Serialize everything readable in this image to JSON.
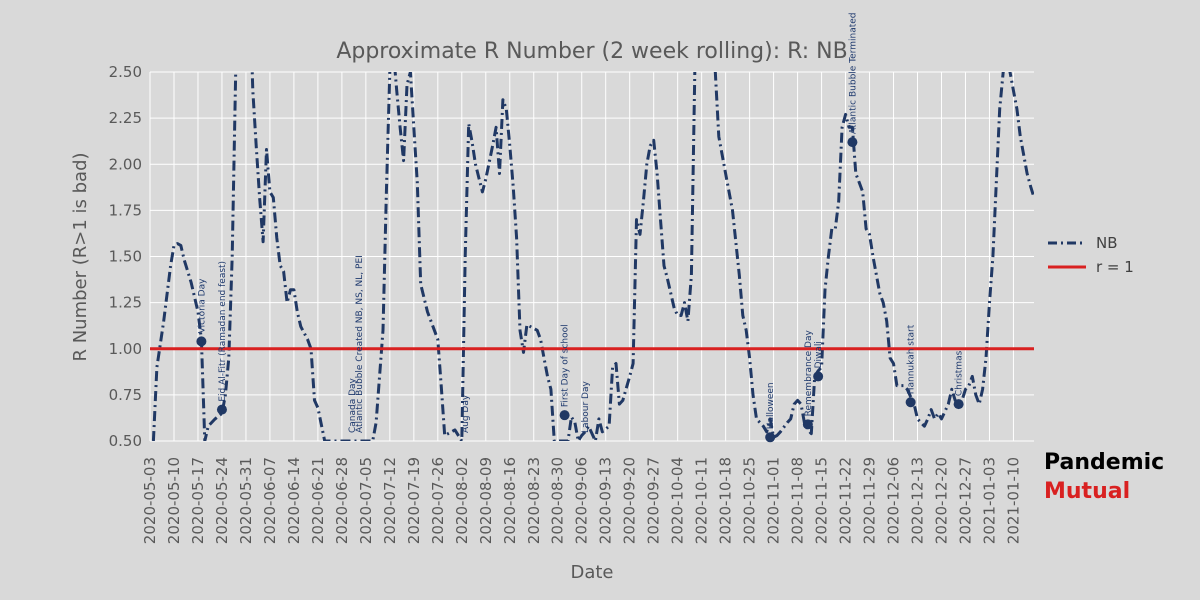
{
  "chart_data": {
    "type": "line",
    "title": "Approximate R Number (2 week rolling): R: NB",
    "xlabel": "Date",
    "ylabel": "R Number (R>1 is bad)",
    "ylim": [
      0.5,
      2.5
    ],
    "xlim": [
      "2020-05-03",
      "2021-01-16"
    ],
    "yticks": [
      "0.50",
      "0.75",
      "1.00",
      "1.25",
      "1.50",
      "1.75",
      "2.00",
      "2.25",
      "2.50"
    ],
    "xticks": [
      "2020-05-03",
      "2020-05-10",
      "2020-05-17",
      "2020-05-24",
      "2020-05-31",
      "2020-06-07",
      "2020-06-14",
      "2020-06-21",
      "2020-06-28",
      "2020-07-05",
      "2020-07-12",
      "2020-07-19",
      "2020-07-26",
      "2020-08-02",
      "2020-08-09",
      "2020-08-16",
      "2020-08-23",
      "2020-08-30",
      "2020-09-06",
      "2020-09-13",
      "2020-09-20",
      "2020-09-27",
      "2020-10-04",
      "2020-10-11",
      "2020-10-18",
      "2020-10-25",
      "2020-11-01",
      "2020-11-08",
      "2020-11-15",
      "2020-11-22",
      "2020-11-29",
      "2020-12-06",
      "2020-12-13",
      "2020-12-20",
      "2020-12-27",
      "2021-01-03",
      "2021-01-10"
    ],
    "grid": true,
    "legend_position": "right",
    "series": [
      {
        "name": "NB",
        "color": "#203864",
        "style": "dash-dot",
        "points": [
          [
            "2020-05-04",
            0.5
          ],
          [
            "2020-05-05",
            0.9
          ],
          [
            "2020-05-07",
            1.15
          ],
          [
            "2020-05-09",
            1.45
          ],
          [
            "2020-05-10",
            1.56
          ],
          [
            "2020-05-11",
            1.57
          ],
          [
            "2020-05-12",
            1.56
          ],
          [
            "2020-05-13",
            1.48
          ],
          [
            "2020-05-15",
            1.36
          ],
          [
            "2020-05-17",
            1.2
          ],
          [
            "2020-05-18",
            1.05
          ],
          [
            "2020-05-19",
            0.5
          ],
          [
            "2020-05-20",
            0.58
          ],
          [
            "2020-05-22",
            0.62
          ],
          [
            "2020-05-24",
            0.65
          ],
          [
            "2020-05-25",
            0.75
          ],
          [
            "2020-05-26",
            0.95
          ],
          [
            "2020-05-27",
            1.5
          ],
          [
            "2020-05-28",
            2.5
          ],
          [
            "2020-05-29",
            3.0
          ],
          [
            "2020-06-01",
            3.0
          ],
          [
            "2020-06-02",
            2.4
          ],
          [
            "2020-06-03",
            2.1
          ],
          [
            "2020-06-04",
            1.82
          ],
          [
            "2020-06-05",
            1.58
          ],
          [
            "2020-06-06",
            2.08
          ],
          [
            "2020-06-07",
            1.85
          ],
          [
            "2020-06-08",
            1.82
          ],
          [
            "2020-06-09",
            1.6
          ],
          [
            "2020-06-10",
            1.45
          ],
          [
            "2020-06-11",
            1.42
          ],
          [
            "2020-06-12",
            1.25
          ],
          [
            "2020-06-13",
            1.32
          ],
          [
            "2020-06-14",
            1.32
          ],
          [
            "2020-06-15",
            1.2
          ],
          [
            "2020-06-16",
            1.12
          ],
          [
            "2020-06-18",
            1.05
          ],
          [
            "2020-06-19",
            1.0
          ],
          [
            "2020-06-20",
            0.72
          ],
          [
            "2020-06-21",
            0.68
          ],
          [
            "2020-06-23",
            0.5
          ],
          [
            "2020-07-07",
            0.5
          ],
          [
            "2020-07-08",
            0.6
          ],
          [
            "2020-07-10",
            1.1
          ],
          [
            "2020-07-11",
            1.85
          ],
          [
            "2020-07-12",
            2.5
          ],
          [
            "2020-07-13",
            2.62
          ],
          [
            "2020-07-14",
            2.4
          ],
          [
            "2020-07-15",
            2.2
          ],
          [
            "2020-07-16",
            2.02
          ],
          [
            "2020-07-17",
            2.43
          ],
          [
            "2020-07-18",
            2.5
          ],
          [
            "2020-07-19",
            2.2
          ],
          [
            "2020-07-20",
            1.9
          ],
          [
            "2020-07-21",
            1.35
          ],
          [
            "2020-07-23",
            1.2
          ],
          [
            "2020-07-25",
            1.1
          ],
          [
            "2020-07-26",
            1.05
          ],
          [
            "2020-07-27",
            0.8
          ],
          [
            "2020-07-28",
            0.53
          ],
          [
            "2020-07-30",
            0.55
          ],
          [
            "2020-07-31",
            0.56
          ],
          [
            "2020-08-02",
            0.5
          ],
          [
            "2020-08-03",
            1.5
          ],
          [
            "2020-08-04",
            2.22
          ],
          [
            "2020-08-05",
            2.12
          ],
          [
            "2020-08-06",
            2.0
          ],
          [
            "2020-08-08",
            1.85
          ],
          [
            "2020-08-09",
            1.92
          ],
          [
            "2020-08-11",
            2.1
          ],
          [
            "2020-08-12",
            2.2
          ],
          [
            "2020-08-13",
            1.95
          ],
          [
            "2020-08-14",
            2.35
          ],
          [
            "2020-08-15",
            2.3
          ],
          [
            "2020-08-16",
            2.1
          ],
          [
            "2020-08-17",
            1.88
          ],
          [
            "2020-08-18",
            1.6
          ],
          [
            "2020-08-19",
            1.1
          ],
          [
            "2020-08-20",
            0.98
          ],
          [
            "2020-08-21",
            1.13
          ],
          [
            "2020-08-22",
            1.12
          ],
          [
            "2020-08-24",
            1.1
          ],
          [
            "2020-08-25",
            1.05
          ],
          [
            "2020-08-26",
            0.95
          ],
          [
            "2020-08-27",
            0.85
          ],
          [
            "2020-08-28",
            0.78
          ],
          [
            "2020-08-29",
            0.5
          ],
          [
            "2020-09-02",
            0.5
          ],
          [
            "2020-09-03",
            0.63
          ],
          [
            "2020-09-04",
            0.6
          ],
          [
            "2020-09-05",
            0.5
          ],
          [
            "2020-09-06",
            0.53
          ],
          [
            "2020-09-07",
            0.55
          ],
          [
            "2020-09-08",
            0.58
          ],
          [
            "2020-09-10",
            0.5
          ],
          [
            "2020-09-11",
            0.62
          ],
          [
            "2020-09-12",
            0.55
          ],
          [
            "2020-09-14",
            0.58
          ],
          [
            "2020-09-15",
            0.9
          ],
          [
            "2020-09-16",
            0.92
          ],
          [
            "2020-09-17",
            0.7
          ],
          [
            "2020-09-18",
            0.72
          ],
          [
            "2020-09-20",
            0.85
          ],
          [
            "2020-09-21",
            0.92
          ],
          [
            "2020-09-22",
            1.7
          ],
          [
            "2020-09-23",
            1.62
          ],
          [
            "2020-09-24",
            1.8
          ],
          [
            "2020-09-25",
            2.0
          ],
          [
            "2020-09-26",
            2.1
          ],
          [
            "2020-09-27",
            2.13
          ],
          [
            "2020-09-28",
            1.95
          ],
          [
            "2020-09-29",
            1.7
          ],
          [
            "2020-09-30",
            1.45
          ],
          [
            "2020-10-01",
            1.38
          ],
          [
            "2020-10-03",
            1.22
          ],
          [
            "2020-10-04",
            1.18
          ],
          [
            "2020-10-05",
            1.18
          ],
          [
            "2020-10-06",
            1.25
          ],
          [
            "2020-10-07",
            1.15
          ],
          [
            "2020-10-08",
            1.4
          ],
          [
            "2020-10-09",
            2.5
          ],
          [
            "2020-10-10",
            3.0
          ],
          [
            "2020-10-14",
            3.0
          ],
          [
            "2020-10-15",
            2.5
          ],
          [
            "2020-10-16",
            2.15
          ],
          [
            "2020-10-18",
            1.95
          ],
          [
            "2020-10-20",
            1.75
          ],
          [
            "2020-10-22",
            1.4
          ],
          [
            "2020-10-23",
            1.18
          ],
          [
            "2020-10-24",
            1.1
          ],
          [
            "2020-10-25",
            0.95
          ],
          [
            "2020-10-26",
            0.75
          ],
          [
            "2020-10-27",
            0.62
          ],
          [
            "2020-10-29",
            0.58
          ],
          [
            "2020-10-30",
            0.55
          ],
          [
            "2020-10-31",
            0.62
          ],
          [
            "2020-11-01",
            0.52
          ],
          [
            "2020-11-02",
            0.53
          ],
          [
            "2020-11-03",
            0.55
          ],
          [
            "2020-11-05",
            0.6
          ],
          [
            "2020-11-06",
            0.62
          ],
          [
            "2020-11-07",
            0.7
          ],
          [
            "2020-11-08",
            0.72
          ],
          [
            "2020-11-09",
            0.7
          ],
          [
            "2020-11-10",
            0.6
          ],
          [
            "2020-11-11",
            0.56
          ],
          [
            "2020-11-12",
            0.54
          ],
          [
            "2020-11-13",
            0.85
          ],
          [
            "2020-11-14",
            0.88
          ],
          [
            "2020-11-15",
            0.9
          ],
          [
            "2020-11-16",
            1.32
          ],
          [
            "2020-11-17",
            1.5
          ],
          [
            "2020-11-18",
            1.65
          ],
          [
            "2020-11-19",
            1.65
          ],
          [
            "2020-11-20",
            1.8
          ],
          [
            "2020-11-21",
            2.2
          ],
          [
            "2020-11-22",
            2.27
          ],
          [
            "2020-11-23",
            2.2
          ],
          [
            "2020-11-24",
            2.2
          ],
          [
            "2020-11-25",
            1.95
          ],
          [
            "2020-11-26",
            1.9
          ],
          [
            "2020-11-27",
            1.85
          ],
          [
            "2020-11-28",
            1.65
          ],
          [
            "2020-11-29",
            1.62
          ],
          [
            "2020-11-30",
            1.5
          ],
          [
            "2020-12-01",
            1.4
          ],
          [
            "2020-12-02",
            1.3
          ],
          [
            "2020-12-03",
            1.25
          ],
          [
            "2020-12-04",
            1.15
          ],
          [
            "2020-12-05",
            0.95
          ],
          [
            "2020-12-06",
            0.92
          ],
          [
            "2020-12-07",
            0.8
          ],
          [
            "2020-12-09",
            0.8
          ],
          [
            "2020-12-10",
            0.78
          ],
          [
            "2020-12-12",
            0.7
          ],
          [
            "2020-12-13",
            0.62
          ],
          [
            "2020-12-14",
            0.6
          ],
          [
            "2020-12-15",
            0.58
          ],
          [
            "2020-12-16",
            0.62
          ],
          [
            "2020-12-17",
            0.67
          ],
          [
            "2020-12-18",
            0.62
          ],
          [
            "2020-12-19",
            0.65
          ],
          [
            "2020-12-20",
            0.62
          ],
          [
            "2020-12-21",
            0.66
          ],
          [
            "2020-12-22",
            0.7
          ],
          [
            "2020-12-23",
            0.78
          ],
          [
            "2020-12-24",
            0.72
          ],
          [
            "2020-12-25",
            0.7
          ],
          [
            "2020-12-26",
            0.72
          ],
          [
            "2020-12-27",
            0.78
          ],
          [
            "2020-12-28",
            0.8
          ],
          [
            "2020-12-29",
            0.85
          ],
          [
            "2020-12-30",
            0.75
          ],
          [
            "2020-12-31",
            0.7
          ],
          [
            "2021-01-01",
            0.78
          ],
          [
            "2021-01-02",
            0.95
          ],
          [
            "2021-01-03",
            1.25
          ],
          [
            "2021-01-04",
            1.5
          ],
          [
            "2021-01-05",
            1.9
          ],
          [
            "2021-01-06",
            2.3
          ],
          [
            "2021-01-07",
            2.5
          ],
          [
            "2021-01-08",
            2.55
          ],
          [
            "2021-01-09",
            2.5
          ],
          [
            "2021-01-10",
            2.4
          ],
          [
            "2021-01-11",
            2.3
          ],
          [
            "2021-01-12",
            2.15
          ],
          [
            "2021-01-13",
            2.05
          ],
          [
            "2021-01-14",
            1.95
          ],
          [
            "2021-01-15",
            1.88
          ],
          [
            "2021-01-16",
            1.82
          ]
        ]
      },
      {
        "name": "r = 1",
        "color": "#d92121",
        "style": "solid",
        "points": [
          [
            "2020-05-03",
            1.0
          ],
          [
            "2021-01-16",
            1.0
          ]
        ]
      }
    ],
    "annotations": [
      {
        "label": "Victoria Day",
        "date": "2020-05-18",
        "y": 1.04,
        "marker": true
      },
      {
        "label": "Eid Al-Fitr (Ramadan end feast)",
        "date": "2020-05-24",
        "y": 0.67,
        "marker": true
      },
      {
        "label": "Canada Day",
        "date": "2020-07-01",
        "y": 0.5,
        "marker": false
      },
      {
        "label": "Atlantic Bubble Created NB, NS, NL, PEI",
        "date": "2020-07-03",
        "y": 0.5,
        "marker": false
      },
      {
        "label": "Aug Day",
        "date": "2020-08-03",
        "y": 0.5,
        "marker": false
      },
      {
        "label": "First Day of school",
        "date": "2020-09-01",
        "y": 0.64,
        "marker": true
      },
      {
        "label": "Labour Day",
        "date": "2020-09-07",
        "y": 0.5,
        "marker": false
      },
      {
        "label": "Halloween",
        "date": "2020-10-31",
        "y": 0.52,
        "marker": true
      },
      {
        "label": "Remembrance Day",
        "date": "2020-11-11",
        "y": 0.59,
        "marker": true
      },
      {
        "label": "Diwali",
        "date": "2020-11-14",
        "y": 0.85,
        "marker": true
      },
      {
        "label": "Atlantic Bubble Terminated",
        "date": "2020-11-24",
        "y": 2.12,
        "marker": true
      },
      {
        "label": "Hannukah start",
        "date": "2020-12-11",
        "y": 0.71,
        "marker": true
      },
      {
        "label": "Christmas",
        "date": "2020-12-25",
        "y": 0.7,
        "marker": true
      }
    ]
  },
  "brand": {
    "line1": "Pandemic",
    "line2": "Mutual"
  }
}
